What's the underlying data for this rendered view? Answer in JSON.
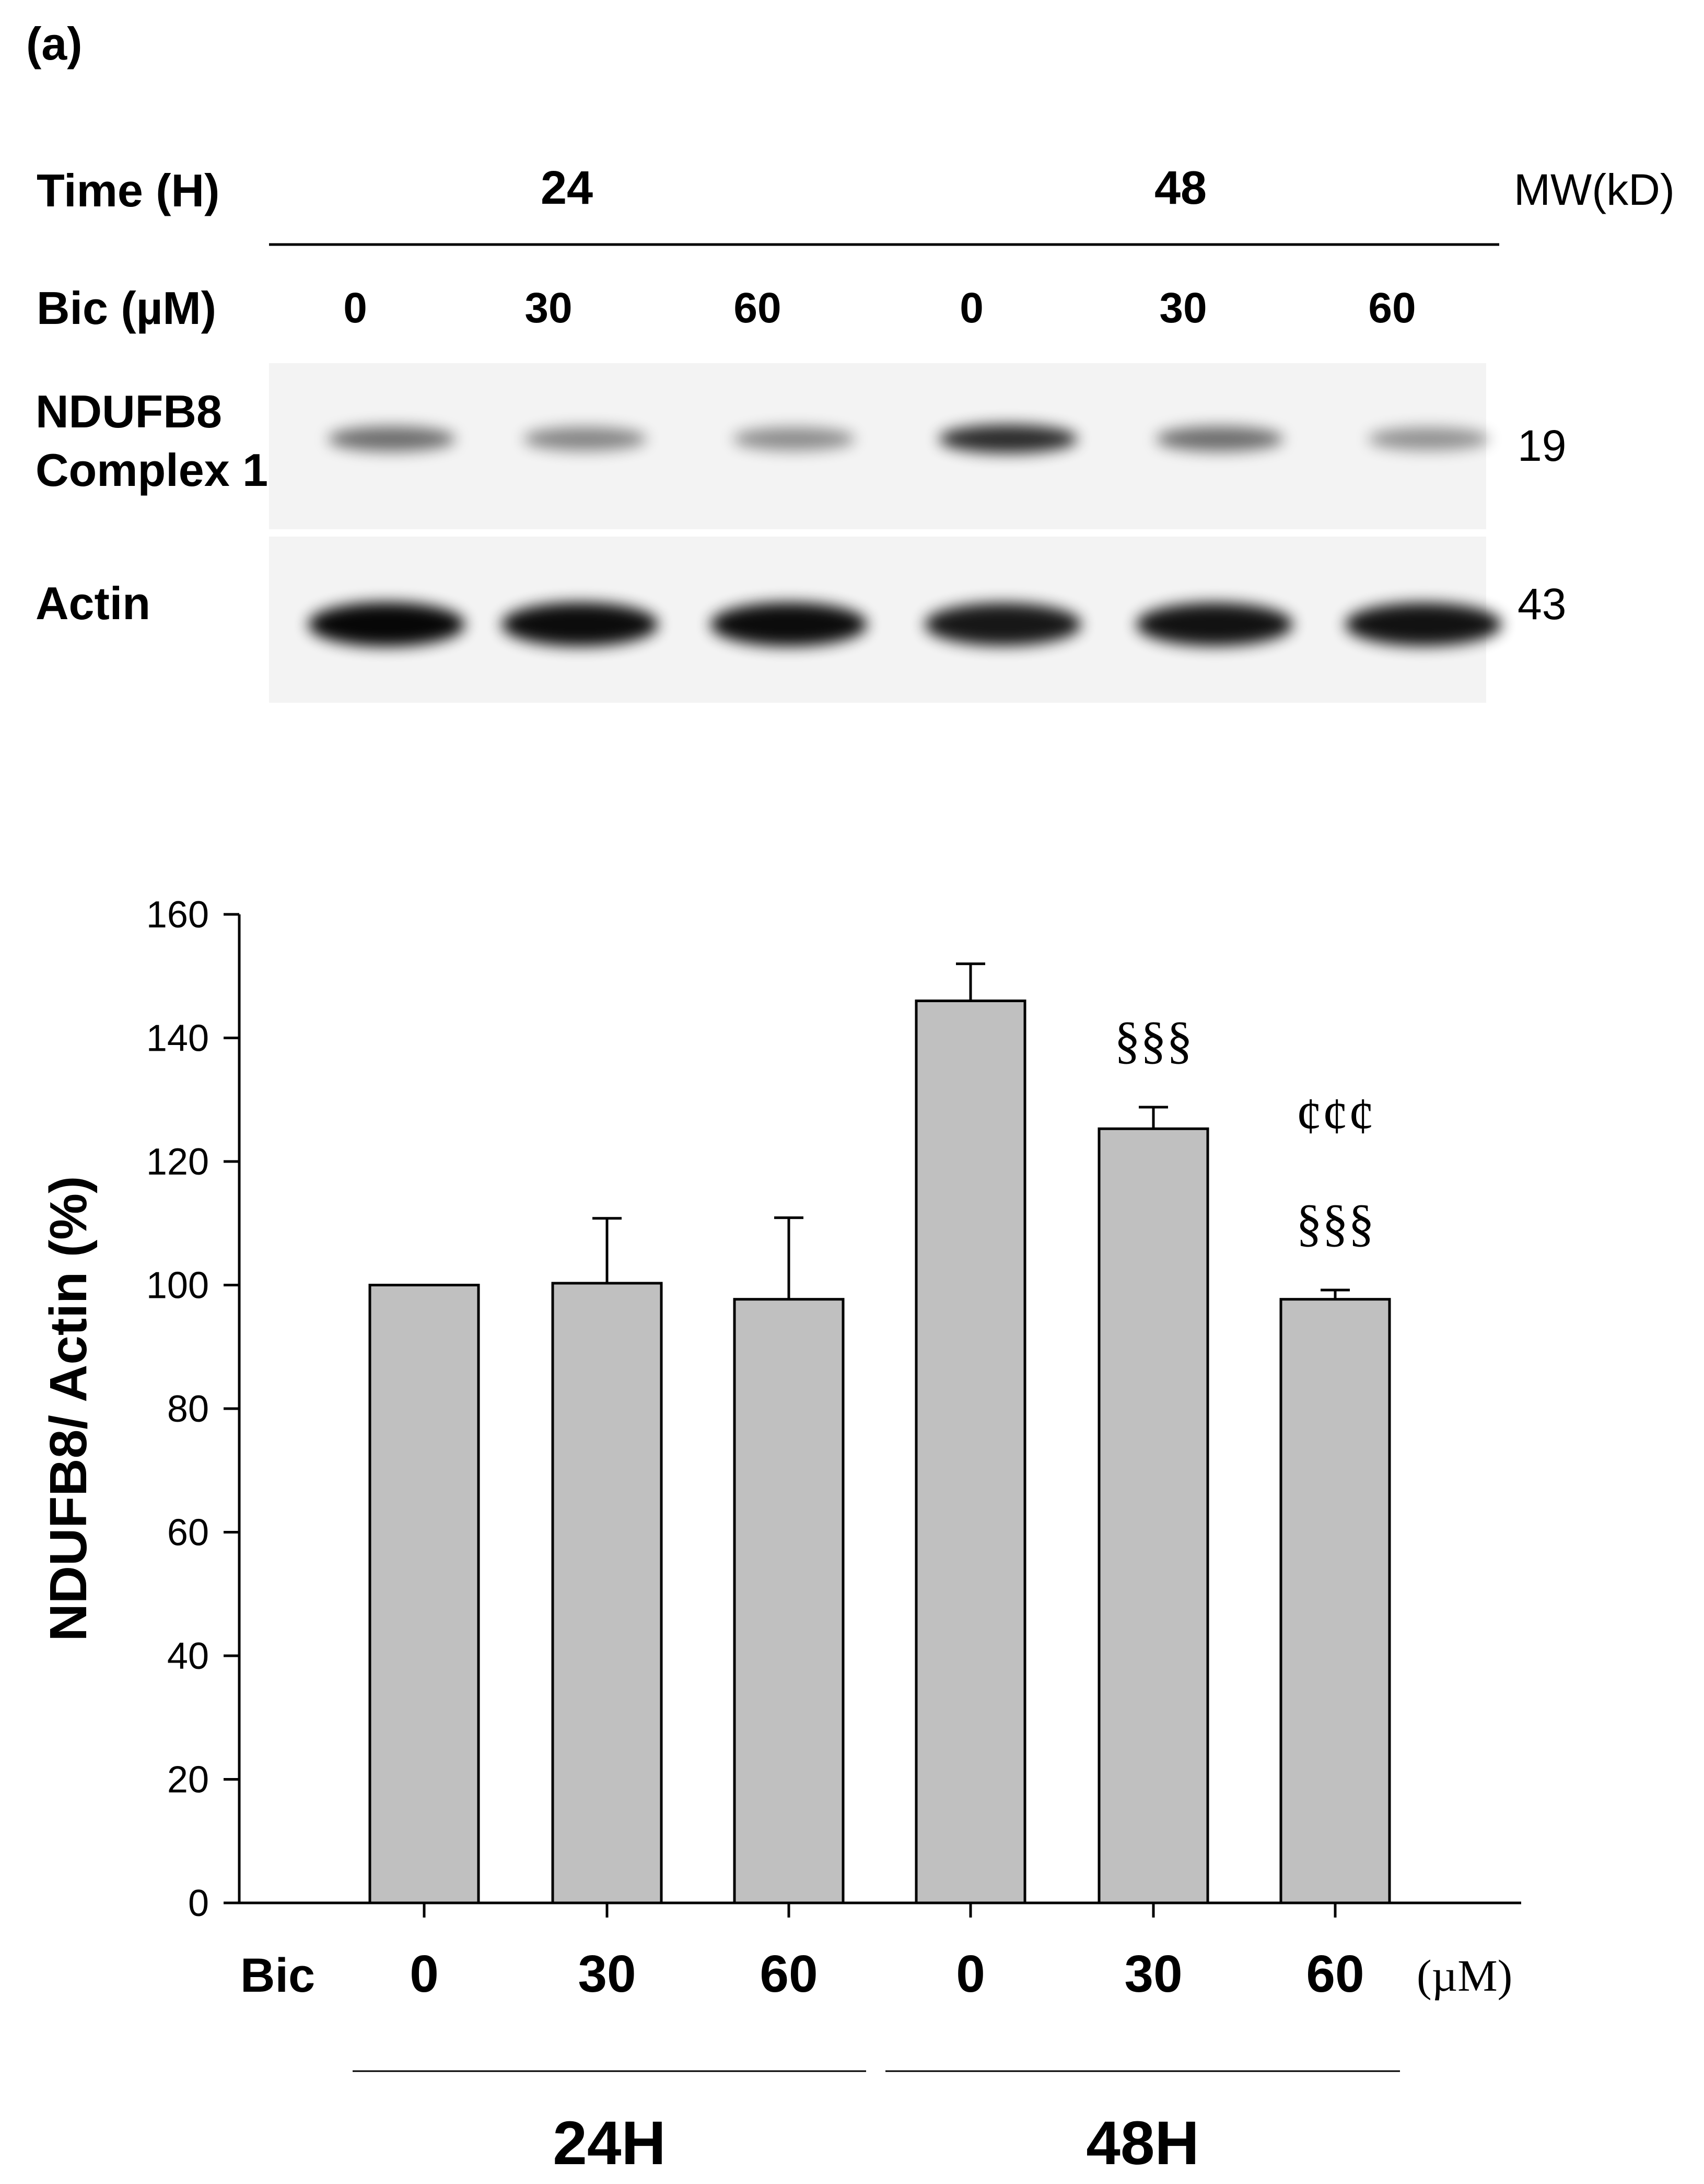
{
  "panel_label": "(a)",
  "blot": {
    "time_label": "Time (H)",
    "time_groups": [
      "24",
      "48"
    ],
    "mw_label": "MW(kD)",
    "bic_label": "Bic (µM)",
    "doses": [
      "0",
      "30",
      "60",
      "0",
      "30",
      "60"
    ],
    "rows": [
      {
        "label_lines": [
          "NDUFB8",
          "Complex 1"
        ],
        "mw": "19",
        "band_intensity": [
          0.55,
          0.45,
          0.42,
          0.82,
          0.55,
          0.4
        ]
      },
      {
        "label_lines": [
          "Actin"
        ],
        "mw": "43",
        "band_intensity": [
          0.97,
          0.95,
          0.95,
          0.9,
          0.92,
          0.92
        ]
      }
    ],
    "colors": {
      "band": "#000000",
      "background": "#f3f3f3"
    }
  },
  "chart_data": {
    "type": "bar",
    "ylabel": "NDUFB8/ Actin (%)",
    "ylim": [
      0,
      160
    ],
    "yticks": [
      0,
      20,
      40,
      60,
      80,
      100,
      120,
      140,
      160
    ],
    "x_prefix": "Bic",
    "x_unit": "(µM)",
    "categories": [
      "0",
      "30",
      "60",
      "0",
      "30",
      "60"
    ],
    "groups": [
      {
        "label": "24H",
        "indices": [
          0,
          1,
          2
        ]
      },
      {
        "label": "48H",
        "indices": [
          3,
          4,
          5
        ]
      }
    ],
    "values": [
      100,
      100.3,
      97.7,
      146,
      125.3,
      97.7
    ],
    "errors": [
      0,
      10.5,
      13.2,
      6,
      3.5,
      1.5
    ],
    "annotations": [
      {
        "index": 4,
        "lines": [
          "§§§"
        ]
      },
      {
        "index": 5,
        "lines": [
          "¢¢¢",
          "§§§"
        ]
      }
    ],
    "colors": {
      "bar": "#c0c0c0",
      "edge": "#000000"
    },
    "grid": false,
    "legend": "none"
  }
}
